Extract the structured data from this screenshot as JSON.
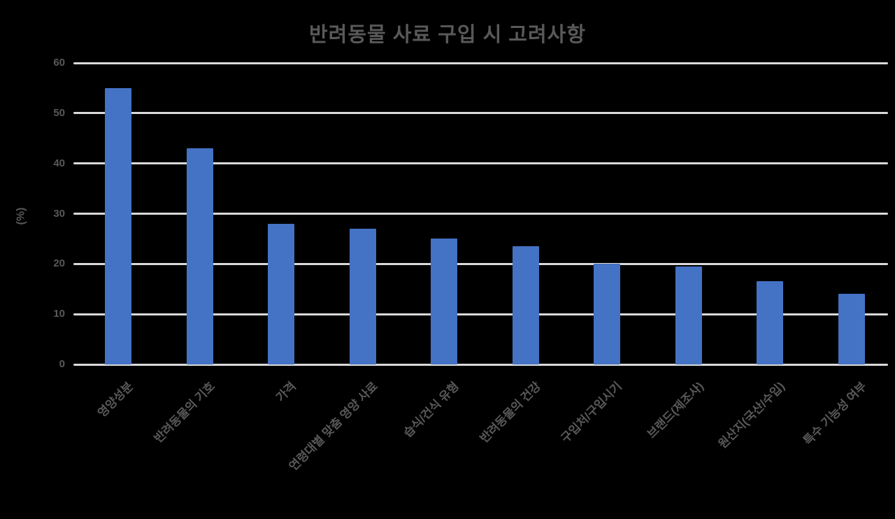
{
  "chart_data": {
    "type": "bar",
    "title": "반려동물 사료 구입 시 고려사항",
    "ylabel": "(%)",
    "categories": [
      "영양성분",
      "반려동물의 기호",
      "가격",
      "연령대별 맞춤 영양 사료",
      "습식/건식 유형",
      "반려동물의 건강",
      "구입처/구입시기",
      "브랜드(제조사)",
      "원산지(국산/수입)",
      "특수 기능성 여부"
    ],
    "values": [
      55,
      43,
      28,
      27,
      25,
      23.5,
      20,
      19.5,
      16.5,
      14
    ],
    "ylim": [
      0,
      60
    ],
    "yticks": [
      0,
      10,
      20,
      30,
      40,
      50,
      60
    ],
    "grid": true,
    "legend_position": "none",
    "bar_color": "#4472C4",
    "gridline_color": "#d9d9d9",
    "text_color": "#595959"
  }
}
